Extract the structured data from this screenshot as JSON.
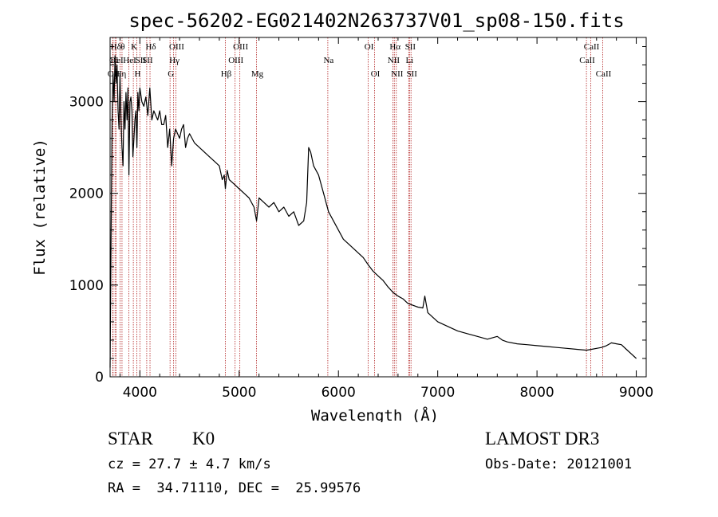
{
  "chart_data": {
    "type": "line",
    "title": "spec-56202-EG021402N263737V01_sp08-150.fits",
    "xlabel": "Wavelength (Å)",
    "ylabel": "Flux (relative)",
    "xlim": [
      3700,
      9100
    ],
    "ylim": [
      0,
      3700
    ],
    "xticks": [
      4000,
      5000,
      6000,
      7000,
      8000,
      9000
    ],
    "yticks": [
      0,
      1000,
      2000,
      3000
    ],
    "series": [
      {
        "name": "flux",
        "x": [
          3700,
          3710,
          3720,
          3730,
          3740,
          3750,
          3760,
          3770,
          3780,
          3790,
          3800,
          3810,
          3820,
          3830,
          3840,
          3850,
          3860,
          3870,
          3880,
          3890,
          3900,
          3910,
          3920,
          3930,
          3940,
          3950,
          3960,
          3970,
          3980,
          3990,
          4000,
          4020,
          4040,
          4060,
          4080,
          4100,
          4120,
          4140,
          4160,
          4180,
          4200,
          4220,
          4240,
          4260,
          4280,
          4300,
          4320,
          4340,
          4360,
          4380,
          4400,
          4420,
          4440,
          4460,
          4480,
          4500,
          4550,
          4600,
          4650,
          4700,
          4750,
          4800,
          4830,
          4850,
          4861,
          4880,
          4900,
          4950,
          5000,
          5050,
          5100,
          5150,
          5175,
          5200,
          5250,
          5300,
          5350,
          5400,
          5450,
          5500,
          5550,
          5600,
          5650,
          5680,
          5700,
          5720,
          5750,
          5800,
          5850,
          5900,
          5950,
          6000,
          6050,
          6100,
          6150,
          6200,
          6250,
          6300,
          6350,
          6400,
          6450,
          6500,
          6550,
          6600,
          6650,
          6700,
          6750,
          6800,
          6850,
          6870,
          6880,
          6900,
          6950,
          7000,
          7100,
          7200,
          7300,
          7400,
          7500,
          7600,
          7650,
          7700,
          7800,
          7900,
          8000,
          8100,
          8200,
          8300,
          8400,
          8500,
          8550,
          8600,
          8650,
          8700,
          8750,
          8800,
          8850,
          8900,
          8950,
          9000
        ],
        "values": [
          100,
          1500,
          2800,
          3300,
          3000,
          3500,
          3200,
          3400,
          2900,
          2700,
          3300,
          2800,
          2500,
          2300,
          3000,
          2700,
          3100,
          2800,
          3150,
          2200,
          3000,
          3050,
          2900,
          2400,
          2600,
          2800,
          2900,
          2500,
          3100,
          2900,
          3150,
          3000,
          2950,
          3050,
          2850,
          3150,
          2800,
          2900,
          2850,
          2800,
          2900,
          2750,
          2750,
          2850,
          2500,
          2700,
          2300,
          2600,
          2700,
          2650,
          2600,
          2700,
          2750,
          2500,
          2600,
          2650,
          2550,
          2500,
          2450,
          2400,
          2350,
          2300,
          2150,
          2200,
          2050,
          2250,
          2150,
          2100,
          2050,
          2000,
          1950,
          1850,
          1700,
          1950,
          1900,
          1850,
          1900,
          1800,
          1850,
          1750,
          1800,
          1650,
          1700,
          1900,
          2500,
          2450,
          2300,
          2200,
          2000,
          1800,
          1700,
          1600,
          1500,
          1450,
          1400,
          1350,
          1300,
          1220,
          1150,
          1100,
          1050,
          980,
          920,
          880,
          850,
          800,
          780,
          760,
          750,
          880,
          820,
          700,
          650,
          600,
          550,
          500,
          470,
          440,
          410,
          440,
          400,
          380,
          360,
          350,
          340,
          330,
          320,
          310,
          300,
          290,
          300,
          310,
          320,
          340,
          370,
          360,
          350,
          300,
          250,
          200
        ]
      }
    ],
    "lines": [
      {
        "label": "Hδ",
        "x": 3750,
        "row": 0
      },
      {
        "label": "OI",
        "x": 3730,
        "row": 1
      },
      {
        "label": "OII",
        "x": 3727,
        "row": 2
      },
      {
        "label": "HeI",
        "x": 3760,
        "row": 1
      },
      {
        "label": "Hη",
        "x": 3800,
        "row": 2
      },
      {
        "label": "θ",
        "x": 3820,
        "row": 0
      },
      {
        "label": "K",
        "x": 3934,
        "row": 0
      },
      {
        "label": "HeI",
        "x": 3889,
        "row": 1
      },
      {
        "label": "H",
        "x": 3969,
        "row": 2
      },
      {
        "label": "SII",
        "x": 4000,
        "row": 1
      },
      {
        "label": "Hδ",
        "x": 4102,
        "row": 0
      },
      {
        "label": "SII",
        "x": 4069,
        "row": 1
      },
      {
        "label": "OIII",
        "x": 4363,
        "row": 0
      },
      {
        "label": "Hγ",
        "x": 4340,
        "row": 1
      },
      {
        "label": "G",
        "x": 4304,
        "row": 2
      },
      {
        "label": "Hβ",
        "x": 4861,
        "row": 2
      },
      {
        "label": "OIII",
        "x": 5007,
        "row": 0
      },
      {
        "label": "OIII",
        "x": 4959,
        "row": 1
      },
      {
        "label": "Mg",
        "x": 5175,
        "row": 2
      },
      {
        "label": "Na",
        "x": 5893,
        "row": 1
      },
      {
        "label": "OI",
        "x": 6300,
        "row": 0
      },
      {
        "label": "OI",
        "x": 6364,
        "row": 2
      },
      {
        "label": "Hα",
        "x": 6563,
        "row": 0
      },
      {
        "label": "NII",
        "x": 6548,
        "row": 1
      },
      {
        "label": "NII",
        "x": 6583,
        "row": 2
      },
      {
        "label": "SII",
        "x": 6716,
        "row": 0
      },
      {
        "label": "Li",
        "x": 6708,
        "row": 1
      },
      {
        "label": "SII",
        "x": 6731,
        "row": 2
      },
      {
        "label": "CaII",
        "x": 8542,
        "row": 0
      },
      {
        "label": "CaII",
        "x": 8498,
        "row": 1
      },
      {
        "label": "CaII",
        "x": 8662,
        "row": 2
      }
    ]
  },
  "info": {
    "class": "STAR",
    "subclass": "K0",
    "survey": "LAMOST DR3",
    "redshift": "cz = 27.7 ± 4.7 km/s",
    "obs_date": "Obs-Date: 20121001",
    "coords": "RA =  34.71110, DEC =  25.99576"
  }
}
